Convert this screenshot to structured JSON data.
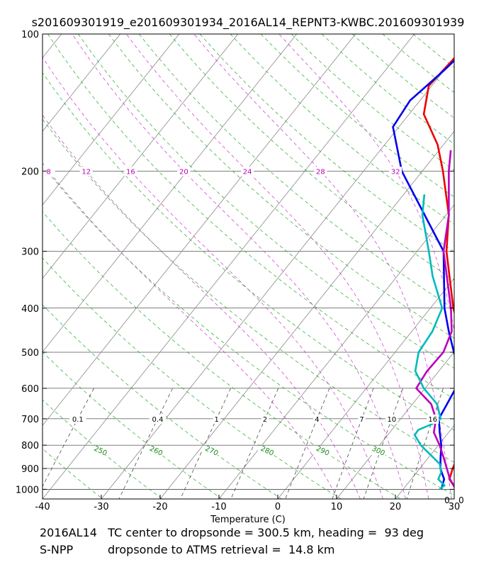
{
  "chart_data": {
    "type": "line",
    "subtype": "skew-t-log-p",
    "title": "s201609301919_e201609301934_2016AL14_REPNT3-KWBC.201609301939",
    "xlabel": "Temperature (C)",
    "ylabel": "",
    "xlim": [
      -40,
      30
    ],
    "ylim": [
      1050,
      100
    ],
    "x_ticks": [
      -40,
      -30,
      -20,
      -10,
      0,
      10,
      20,
      30
    ],
    "p_ticks": [
      100,
      200,
      300,
      400,
      500,
      600,
      700,
      800,
      900,
      1000
    ],
    "grid": true,
    "mixing_ratio_labels": [
      "0.1",
      "0.4",
      "1",
      "2",
      "4",
      "7",
      "10",
      "16"
    ],
    "mixing_ratio_values": [
      0.1,
      0.4,
      1,
      2,
      4,
      7,
      10,
      16
    ],
    "dry_adiabat_labels": [
      "250",
      "260",
      "270",
      "280",
      "290",
      "300"
    ],
    "dry_adiabat_values": [
      250,
      260,
      270,
      280,
      290,
      300
    ],
    "moist_adiabat_labels": [
      "8",
      "12",
      "16",
      "20",
      "24",
      "28",
      "32"
    ],
    "moist_adiabat_values": [
      8,
      12,
      16,
      20,
      24,
      28,
      32
    ],
    "corner_text": [
      "0",
      "0"
    ],
    "series": [
      {
        "name": "Temperature (red)",
        "color": "#ee0000",
        "points": [
          [
            1000,
            29.0
          ],
          [
            950,
            26.5
          ],
          [
            900,
            25.6
          ],
          [
            850,
            24.9
          ],
          [
            800,
            24.0
          ],
          [
            750,
            23.2
          ],
          [
            700,
            22.3
          ],
          [
            650,
            20.8
          ],
          [
            600,
            19.0
          ],
          [
            550,
            15.2
          ],
          [
            500,
            12.1
          ],
          [
            450,
            8.2
          ],
          [
            400,
            3.9
          ],
          [
            300,
            -5.0
          ],
          [
            250,
            -9.5
          ],
          [
            200,
            -16.5
          ],
          [
            175,
            -21.0
          ],
          [
            150,
            -27.5
          ],
          [
            130,
            -30.5
          ],
          [
            115,
            -30.0
          ],
          [
            100,
            -29.5
          ]
        ]
      },
      {
        "name": "Dewpoint (blue)",
        "color": "#0000ee",
        "points": [
          [
            1000,
            26.5
          ],
          [
            950,
            25.6
          ],
          [
            900,
            23.5
          ],
          [
            850,
            22.0
          ],
          [
            800,
            20.5
          ],
          [
            750,
            18.5
          ],
          [
            700,
            16.5
          ],
          [
            600,
            15.2
          ],
          [
            550,
            13.5
          ],
          [
            500,
            10.0
          ],
          [
            450,
            6.3
          ],
          [
            400,
            2.4
          ],
          [
            300,
            -5.5
          ],
          [
            200,
            -23.5
          ],
          [
            160,
            -31.0
          ],
          [
            140,
            -31.7
          ],
          [
            120,
            -30.0
          ],
          [
            100,
            -28.5
          ]
        ]
      },
      {
        "name": "Retrieval temperature (magenta)",
        "color": "#bb00bb",
        "points": [
          [
            1000,
            29.0
          ],
          [
            950,
            26.6
          ],
          [
            900,
            24.6
          ],
          [
            850,
            22.5
          ],
          [
            800,
            20.2
          ],
          [
            750,
            17.5
          ],
          [
            700,
            16.0
          ],
          [
            650,
            13.2
          ],
          [
            600,
            8.5
          ],
          [
            550,
            8.0
          ],
          [
            500,
            8.2
          ],
          [
            450,
            6.8
          ],
          [
            400,
            3.5
          ],
          [
            300,
            -5.5
          ],
          [
            250,
            -9.5
          ],
          [
            200,
            -15.5
          ],
          [
            180,
            -18.0
          ]
        ]
      },
      {
        "name": "Retrieval dewpoint (cyan)",
        "color": "#00bbbb",
        "points": [
          [
            1000,
            26.2
          ],
          [
            980,
            26.5
          ],
          [
            950,
            24.6
          ],
          [
            920,
            24.2
          ],
          [
            880,
            22.8
          ],
          [
            800,
            17.0
          ],
          [
            760,
            14.6
          ],
          [
            740,
            14.5
          ],
          [
            720,
            16.0
          ],
          [
            700,
            16.8
          ],
          [
            650,
            14.2
          ],
          [
            600,
            9.8
          ],
          [
            550,
            6.0
          ],
          [
            500,
            4.0
          ],
          [
            450,
            3.5
          ],
          [
            400,
            2.0
          ],
          [
            340,
            -4.0
          ],
          [
            300,
            -8.0
          ],
          [
            250,
            -14.0
          ],
          [
            225,
            -16.5
          ]
        ]
      }
    ]
  },
  "captions": {
    "line1": "2016AL14   TC center to dropsonde = 300.5 km, heading =  93 deg",
    "line2_key": "S-NPP",
    "line2_text": "dropsonde to ATMS retrieval =  14.8 km"
  }
}
